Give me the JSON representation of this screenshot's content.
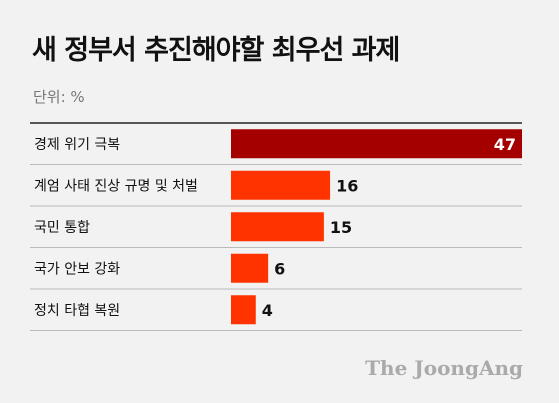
{
  "title": "새 정부서 추진해야할 최우선 과제",
  "unit_label": "단위: %",
  "brand": "The JoongAng",
  "colors": {
    "top_bar": "#a40000",
    "bar": "#ff3300",
    "separator": "#bbbbbb",
    "top_separator": "#222222",
    "label_text": "#111111",
    "top_value_text": "#ffffff"
  },
  "chart_data": {
    "type": "bar",
    "orientation": "horizontal",
    "categories": [
      "경제 위기 극복",
      "계엄 사태 진상 규명 및 처벌",
      "국민 통합",
      "국가 안보 강화",
      "정치 타협 복원"
    ],
    "values": [
      47,
      16,
      15,
      6,
      4
    ],
    "unit": "%",
    "xlim": [
      0,
      47
    ],
    "grid": false,
    "legend": "none"
  }
}
